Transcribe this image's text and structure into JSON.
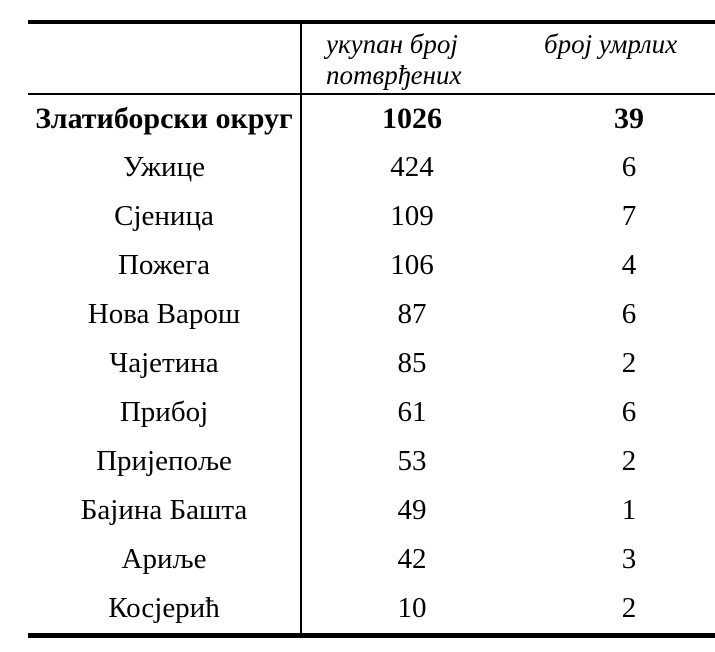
{
  "table": {
    "header": {
      "region_label": "",
      "confirmed_line1": "укупан број",
      "confirmed_line2": "потврђених",
      "deaths_label": "број умрлих"
    },
    "summary_row": {
      "name": "Златиборски округ",
      "confirmed": "1026",
      "deaths": "39"
    },
    "rows": [
      {
        "name": "Ужице",
        "confirmed": "424",
        "deaths": "6"
      },
      {
        "name": "Сјеница",
        "confirmed": "109",
        "deaths": "7"
      },
      {
        "name": "Пожега",
        "confirmed": "106",
        "deaths": "4"
      },
      {
        "name": "Нова Варош",
        "confirmed": "87",
        "deaths": "6"
      },
      {
        "name": "Чајетина",
        "confirmed": "85",
        "deaths": "2"
      },
      {
        "name": "Прибој",
        "confirmed": "61",
        "deaths": "6"
      },
      {
        "name": "Пријепоље",
        "confirmed": "53",
        "deaths": "2"
      },
      {
        "name": "Бајина Башта",
        "confirmed": "49",
        "deaths": "1"
      },
      {
        "name": "Ариље",
        "confirmed": "42",
        "deaths": "3"
      },
      {
        "name": "Косјерић",
        "confirmed": "10",
        "deaths": "2"
      }
    ],
    "colors": {
      "text": "#000000",
      "background": "#ffffff",
      "rule": "#000000"
    }
  }
}
